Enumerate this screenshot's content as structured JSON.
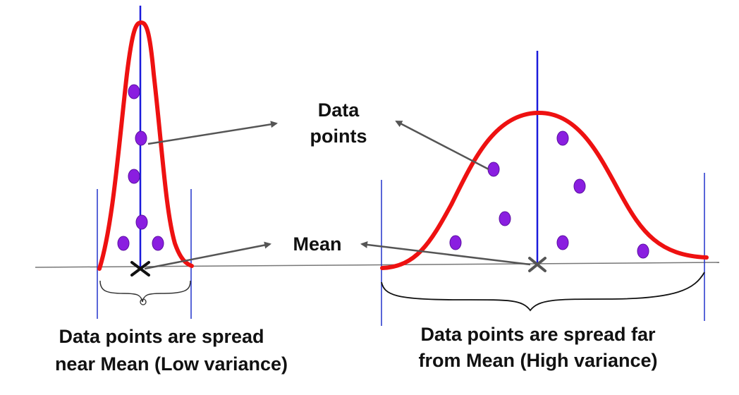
{
  "labels": {
    "data_points_line1": "Data",
    "data_points_line2": "points",
    "mean": "Mean",
    "low_caption_line1": "Data points are spread",
    "low_caption_line2": "near Mean (Low variance)",
    "high_caption_line1": "Data points are spread far",
    "high_caption_line2": "from Mean (High variance)"
  },
  "colors": {
    "curve": "#ee1111",
    "mean_line": "#1a1adb",
    "boundary": "#2233cc",
    "point_fill": "#8a1ee0",
    "point_stroke": "#5a10a0",
    "arrow": "#555555",
    "axis": "#777777",
    "brace": "#111111"
  },
  "icons": {
    "mean_marker": "x-mark-icon",
    "data_point": "circle-dot-icon"
  }
}
